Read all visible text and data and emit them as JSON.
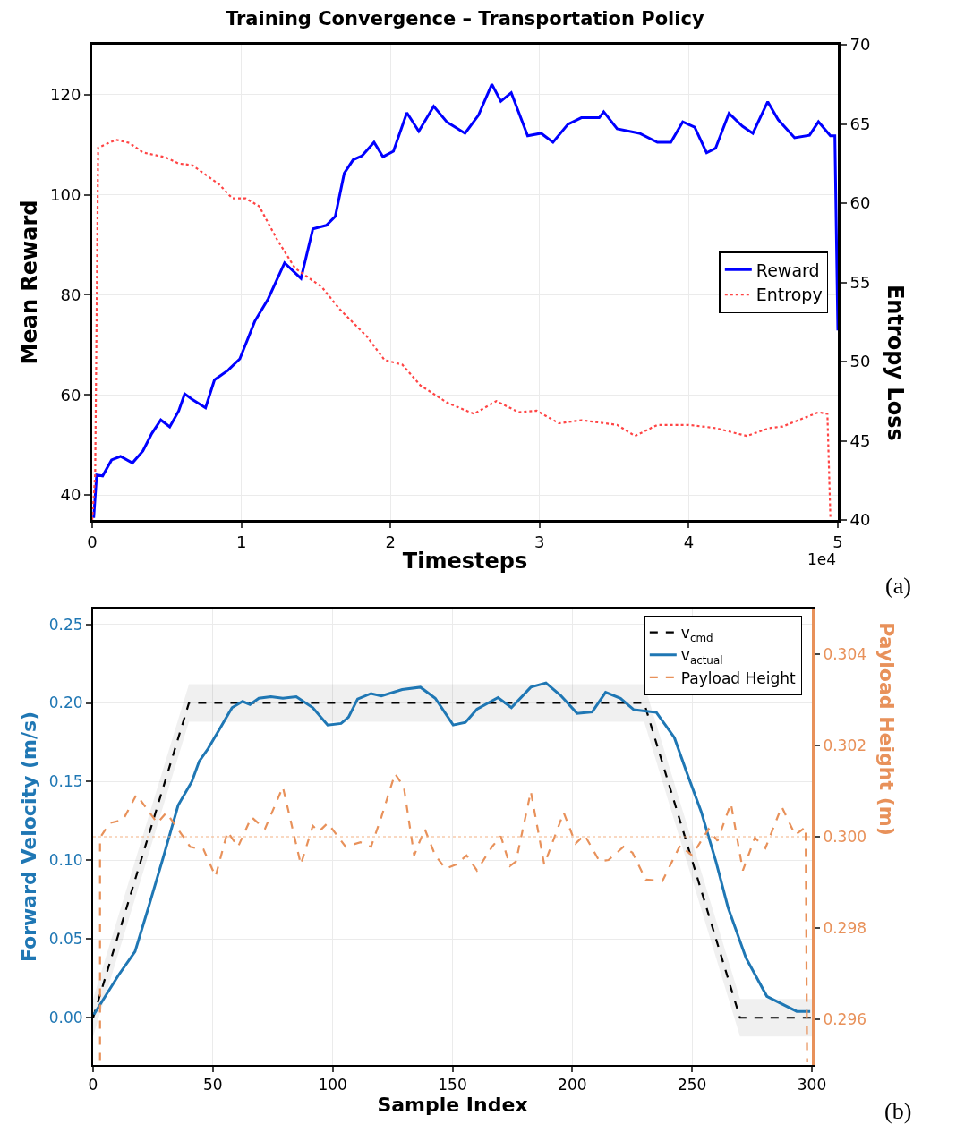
{
  "chart_data": [
    {
      "type": "line",
      "title": "Training Convergence – Transportation Policy",
      "xlabel": "Timesteps",
      "ylabel": "Mean Reward",
      "y2label": "Entropy Loss",
      "xlim": [
        0,
        5
      ],
      "xticks": [
        0,
        1,
        2,
        3,
        4,
        5
      ],
      "ylim": [
        35,
        130
      ],
      "yticks": [
        40,
        60,
        80,
        100,
        120
      ],
      "y2lim": [
        40,
        70
      ],
      "y2ticks": [
        40,
        45,
        50,
        55,
        60,
        65,
        70
      ],
      "grid": true,
      "legend": "right",
      "annotations": [
        "1e4",
        "(a)"
      ],
      "series": [
        {
          "name": "Reward",
          "color": "#0000ff",
          "line_style": "solid",
          "x": [
            0.01,
            0.03,
            0.07,
            0.13,
            0.19,
            0.27,
            0.34,
            0.4,
            0.46,
            0.52,
            0.58,
            0.62,
            0.67,
            0.76,
            0.82,
            0.91,
            0.99,
            1.09,
            1.18,
            1.29,
            1.4,
            1.48,
            1.57,
            1.63,
            1.69,
            1.75,
            1.81,
            1.89,
            1.95,
            2.02,
            2.11,
            2.19,
            2.29,
            2.38,
            2.5,
            2.59,
            2.68,
            2.74,
            2.81,
            2.92,
            3.01,
            3.09,
            3.19,
            3.28,
            3.4,
            3.43,
            3.52,
            3.67,
            3.79,
            3.88,
            3.96,
            4.04,
            4.12,
            4.18,
            4.27,
            4.36,
            4.43,
            4.53,
            4.6,
            4.71,
            4.81,
            4.87,
            4.95,
            4.98,
            5.0
          ],
          "values": [
            35.4,
            44,
            43.8,
            47,
            47.7,
            46.4,
            48.8,
            52.3,
            55,
            53.6,
            56.8,
            60.2,
            59.1,
            57.4,
            63,
            64.9,
            67.2,
            74.7,
            79.2,
            86.4,
            83.3,
            93.2,
            93.9,
            95.7,
            104.3,
            107,
            107.8,
            110.5,
            107.6,
            108.7,
            116.4,
            112.7,
            117.7,
            114.5,
            112.3,
            115.9,
            122.1,
            118.7,
            120.4,
            111.8,
            112.3,
            110.5,
            114.1,
            115.4,
            115.4,
            116.6,
            113.2,
            112.3,
            110.5,
            110.5,
            114.6,
            113.5,
            108.4,
            109.3,
            116.3,
            113.7,
            112.3,
            118.6,
            115,
            111.4,
            111.9,
            114.6,
            111.8,
            111.8,
            72.9
          ]
        },
        {
          "name": "Entropy",
          "color": "#ff4444",
          "line_style": "dotted",
          "axis": "y2",
          "x": [
            0,
            0.02,
            0.04,
            0.16,
            0.25,
            0.34,
            0.49,
            0.58,
            0.67,
            0.85,
            0.94,
            1.03,
            1.12,
            1.24,
            1.36,
            1.54,
            1.66,
            1.84,
            1.96,
            2.08,
            2.2,
            2.38,
            2.56,
            2.71,
            2.86,
            2.98,
            3.13,
            3.28,
            3.52,
            3.64,
            3.79,
            4.0,
            4.18,
            4.39,
            4.54,
            4.63,
            4.87,
            4.93,
            4.95
          ],
          "values": [
            40,
            42.9,
            63.5,
            64,
            63.8,
            63.2,
            62.9,
            62.5,
            62.4,
            61.2,
            60.3,
            60.3,
            59.8,
            57.7,
            55.9,
            54.7,
            53.3,
            51.6,
            50.1,
            49.8,
            48.5,
            47.4,
            46.7,
            47.5,
            46.8,
            46.9,
            46.1,
            46.3,
            46,
            45.3,
            46,
            46,
            45.8,
            45.3,
            45.8,
            45.9,
            46.8,
            46.7,
            40.2
          ]
        }
      ]
    },
    {
      "type": "line",
      "xlabel": "Sample Index",
      "ylabel": "Forward Velocity (m/s)",
      "y2label": "Payload Height (m)",
      "xlim": [
        0,
        300
      ],
      "xticks": [
        0,
        50,
        100,
        150,
        200,
        250,
        300
      ],
      "ylim": [
        -0.03,
        0.26
      ],
      "yticks": [
        {
          "value": 0,
          "label": "0.00"
        },
        0.05,
        {
          "value": 0.1,
          "label": "0.10"
        },
        0.15,
        {
          "value": 0.2,
          "label": "0.20"
        },
        0.25
      ],
      "y2lim": [
        0.295,
        0.305
      ],
      "y2ticks": [
        0.296,
        0.298,
        {
          "value": 0.3,
          "label": "0.300"
        },
        0.302,
        0.304
      ],
      "grid": true,
      "legend": "top right",
      "annotations": [
        "(b)"
      ],
      "ref_lines": [
        {
          "axis": "y2",
          "value": 0.3,
          "label": null,
          "color": "#f4b183",
          "line_style": "dotted"
        }
      ],
      "series": [
        {
          "name": "v$_{cmd}$",
          "color": "#000000",
          "line_style": "dashed",
          "x": [
            0,
            40,
            230,
            270,
            300
          ],
          "values": [
            0,
            0.2,
            0.2,
            0,
            0
          ],
          "lower": [
            -0.012,
            0.188,
            0.188,
            -0.012,
            -0.012
          ],
          "upper": [
            0.012,
            0.212,
            0.212,
            0.012,
            0.012
          ]
        },
        {
          "name": "v$_{actual}$",
          "color": "#1f77b4",
          "line_style": "solid",
          "x": [
            0.3,
            10.6,
            17.5,
            23.1,
            29.3,
            35.5,
            41.2,
            44.3,
            48,
            53,
            58,
            62.4,
            65.5,
            69.2,
            74.2,
            79.2,
            84.8,
            91.7,
            97.9,
            103.5,
            106.6,
            110.4,
            116,
            120.3,
            129,
            136.6,
            142.8,
            150.3,
            155.4,
            160.2,
            169,
            174.6,
            182.7,
            189,
            195.2,
            202,
            208.3,
            213.9,
            220.1,
            225.7,
            235.1,
            242.6,
            247.5,
            253.8,
            260,
            265,
            272.5,
            281.2,
            286.2,
            293.7,
            299.3
          ],
          "values": [
            0.002,
            0.027,
            0.042,
            0.07,
            0.102,
            0.135,
            0.15,
            0.163,
            0.171,
            0.184,
            0.197,
            0.201,
            0.199,
            0.203,
            0.204,
            0.203,
            0.204,
            0.197,
            0.186,
            0.187,
            0.191,
            0.2025,
            0.206,
            0.2045,
            0.2085,
            0.21,
            0.203,
            0.186,
            0.1877,
            0.196,
            0.2034,
            0.197,
            0.21,
            0.2127,
            0.2047,
            0.1934,
            0.1943,
            0.2068,
            0.203,
            0.1957,
            0.194,
            0.178,
            0.157,
            0.131,
            0.099,
            0.07,
            0.038,
            0.0136,
            0.0097,
            0.004,
            0.004
          ]
        },
        {
          "name": "Payload Height",
          "color": "#e8915a",
          "line_style": "dashed",
          "axis": "y2",
          "x": [
            2.9,
            2.9,
            6.9,
            12.5,
            18.1,
            26.8,
            30.6,
            40.5,
            46.1,
            51.1,
            56.1,
            60.5,
            66.1,
            71.7,
            79.2,
            86.7,
            91.7,
            94.2,
            97.9,
            105.4,
            111.6,
            116,
            120.3,
            126,
            129.7,
            134,
            138.4,
            142.8,
            147.1,
            151.5,
            155.9,
            160.2,
            166.5,
            170.2,
            174,
            176.5,
            182.7,
            188.3,
            196.4,
            201.4,
            205.1,
            211.4,
            215.1,
            221.4,
            225.1,
            230.7,
            237.6,
            245,
            250,
            256.9,
            260.6,
            266.2,
            271.2,
            276.2,
            280.6,
            287.4,
            293,
            297.4,
            298
          ],
          "values": [
            0.29509,
            0.29998,
            0.3003,
            0.30037,
            0.30092,
            0.3003,
            0.30053,
            0.29978,
            0.29972,
            0.29913,
            0.30011,
            0.29978,
            0.30043,
            0.30017,
            0.30109,
            0.29939,
            0.30024,
            0.30011,
            0.3003,
            0.29978,
            0.29988,
            0.29978,
            0.30043,
            0.30138,
            0.30109,
            0.29959,
            0.30017,
            0.29959,
            0.2993,
            0.29939,
            0.29959,
            0.29926,
            0.29978,
            0.30001,
            0.29936,
            0.29946,
            0.30099,
            0.29939,
            0.30053,
            0.29985,
            0.30004,
            0.29946,
            0.29949,
            0.29978,
            0.29965,
            0.29906,
            0.29903,
            0.29981,
            0.29959,
            0.30017,
            0.29991,
            0.30073,
            0.29926,
            0.29998,
            0.29975,
            0.30066,
            0.30004,
            0.30021,
            0.29506
          ]
        }
      ]
    }
  ]
}
